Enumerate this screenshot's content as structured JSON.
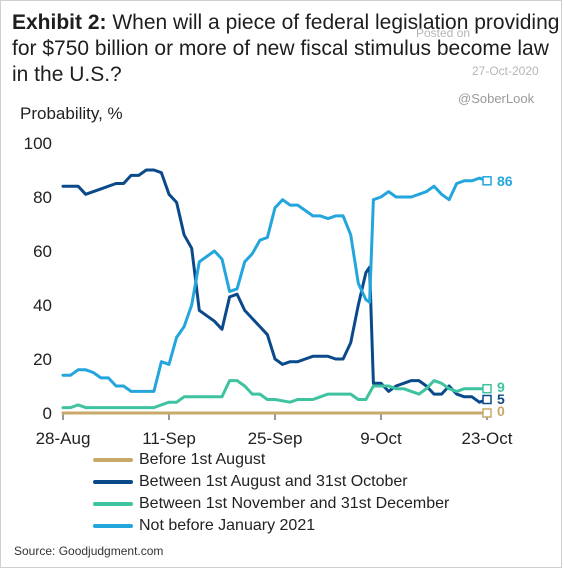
{
  "title": {
    "lead": "Exhibit 2:",
    "text": "When will a piece of federal legislation providing for $750 billion or more of new fiscal stimulus become law in the U.S.?"
  },
  "watermark": {
    "posted": "Posted on",
    "date": "27-Oct-2020",
    "handle": "@SoberLook"
  },
  "source": "Source: Goodjudgment.com",
  "colors": {
    "before_aug": "#c8a96a",
    "aug_oct": "#0b4a8a",
    "nov_dec": "#3ec2a0",
    "not_before_2021": "#24a6dc"
  },
  "chart_data": {
    "type": "line",
    "ylabel": "Probability, %",
    "ylim": [
      0,
      100
    ],
    "yticks": [
      0,
      20,
      40,
      60,
      80,
      100
    ],
    "xlim": [
      "2020-08-28",
      "2020-10-23"
    ],
    "x_ticks": [
      {
        "date": "2020-08-28",
        "label": "28-Aug"
      },
      {
        "date": "2020-09-11",
        "label": "11-Sep"
      },
      {
        "date": "2020-09-25",
        "label": "25-Sep"
      },
      {
        "date": "2020-10-09",
        "label": "9-Oct"
      },
      {
        "date": "2020-10-23",
        "label": "23-Oct"
      }
    ],
    "series": [
      {
        "key": "before_aug",
        "name": "Before 1st August",
        "end_label": "0",
        "points": [
          [
            "2020-08-28",
            0
          ],
          [
            "2020-10-23",
            0
          ]
        ]
      },
      {
        "key": "aug_oct",
        "name": "Between 1st August and 31st October",
        "end_label": "5",
        "points": [
          [
            "2020-08-28",
            84
          ],
          [
            "2020-08-30",
            84
          ],
          [
            "2020-08-31",
            81
          ],
          [
            "2020-09-02",
            83
          ],
          [
            "2020-09-04",
            85
          ],
          [
            "2020-09-05",
            85
          ],
          [
            "2020-09-06",
            88
          ],
          [
            "2020-09-07",
            88
          ],
          [
            "2020-09-08",
            90
          ],
          [
            "2020-09-09",
            90
          ],
          [
            "2020-09-10",
            89
          ],
          [
            "2020-09-11",
            81
          ],
          [
            "2020-09-12",
            78
          ],
          [
            "2020-09-13",
            66
          ],
          [
            "2020-09-14",
            61
          ],
          [
            "2020-09-15",
            38
          ],
          [
            "2020-09-16",
            36
          ],
          [
            "2020-09-17",
            34
          ],
          [
            "2020-09-18",
            31
          ],
          [
            "2020-09-19",
            43
          ],
          [
            "2020-09-20",
            44
          ],
          [
            "2020-09-21",
            38
          ],
          [
            "2020-09-22",
            35
          ],
          [
            "2020-09-23",
            32
          ],
          [
            "2020-09-24",
            29
          ],
          [
            "2020-09-25",
            20
          ],
          [
            "2020-09-26",
            18
          ],
          [
            "2020-09-27",
            19
          ],
          [
            "2020-09-28",
            19
          ],
          [
            "2020-09-29",
            20
          ],
          [
            "2020-09-30",
            21
          ],
          [
            "2020-10-02",
            21
          ],
          [
            "2020-10-03",
            20
          ],
          [
            "2020-10-04",
            20
          ],
          [
            "2020-10-05",
            26
          ],
          [
            "2020-10-06",
            40
          ],
          [
            "2020-10-07",
            52
          ],
          [
            "2020-10-07T12",
            54
          ],
          [
            "2020-10-08",
            11
          ],
          [
            "2020-10-09",
            11
          ],
          [
            "2020-10-10",
            8
          ],
          [
            "2020-10-11",
            10
          ],
          [
            "2020-10-12",
            11
          ],
          [
            "2020-10-13",
            12
          ],
          [
            "2020-10-14",
            12
          ],
          [
            "2020-10-15",
            10
          ],
          [
            "2020-10-16",
            7
          ],
          [
            "2020-10-17",
            7
          ],
          [
            "2020-10-18",
            10
          ],
          [
            "2020-10-19",
            7
          ],
          [
            "2020-10-20",
            6
          ],
          [
            "2020-10-21",
            6
          ],
          [
            "2020-10-22",
            4
          ],
          [
            "2020-10-23",
            5
          ]
        ]
      },
      {
        "key": "nov_dec",
        "name": "Between 1st November and 31st December",
        "end_label": "9",
        "points": [
          [
            "2020-08-28",
            2
          ],
          [
            "2020-08-29",
            2
          ],
          [
            "2020-08-30",
            3
          ],
          [
            "2020-08-31",
            2
          ],
          [
            "2020-09-07",
            2
          ],
          [
            "2020-09-08",
            2
          ],
          [
            "2020-09-09",
            2
          ],
          [
            "2020-09-10",
            3
          ],
          [
            "2020-09-11",
            4
          ],
          [
            "2020-09-12",
            4
          ],
          [
            "2020-09-13",
            6
          ],
          [
            "2020-09-18",
            6
          ],
          [
            "2020-09-19",
            12
          ],
          [
            "2020-09-20",
            12
          ],
          [
            "2020-09-21",
            10
          ],
          [
            "2020-09-22",
            7
          ],
          [
            "2020-09-23",
            7
          ],
          [
            "2020-09-24",
            5
          ],
          [
            "2020-09-25",
            5
          ],
          [
            "2020-09-27",
            4
          ],
          [
            "2020-09-28",
            5
          ],
          [
            "2020-09-30",
            5
          ],
          [
            "2020-10-01",
            6
          ],
          [
            "2020-10-02",
            7
          ],
          [
            "2020-10-05",
            7
          ],
          [
            "2020-10-06",
            5
          ],
          [
            "2020-10-07",
            5
          ],
          [
            "2020-10-08",
            10
          ],
          [
            "2020-10-09",
            10
          ],
          [
            "2020-10-10",
            10
          ],
          [
            "2020-10-11",
            9
          ],
          [
            "2020-10-12",
            9
          ],
          [
            "2020-10-13",
            8
          ],
          [
            "2020-10-14",
            7
          ],
          [
            "2020-10-15",
            9
          ],
          [
            "2020-10-16",
            12
          ],
          [
            "2020-10-17",
            11
          ],
          [
            "2020-10-18",
            9
          ],
          [
            "2020-10-19",
            8
          ],
          [
            "2020-10-20",
            9
          ],
          [
            "2020-10-21",
            9
          ],
          [
            "2020-10-23",
            9
          ]
        ]
      },
      {
        "key": "not_before_2021",
        "name": "Not before January 2021",
        "end_label": "86",
        "points": [
          [
            "2020-08-28",
            14
          ],
          [
            "2020-08-29",
            14
          ],
          [
            "2020-08-30",
            16
          ],
          [
            "2020-08-31",
            16
          ],
          [
            "2020-09-01",
            15
          ],
          [
            "2020-09-02",
            13
          ],
          [
            "2020-09-03",
            13
          ],
          [
            "2020-09-04",
            10
          ],
          [
            "2020-09-05",
            10
          ],
          [
            "2020-09-06",
            8
          ],
          [
            "2020-09-07",
            8
          ],
          [
            "2020-09-08",
            8
          ],
          [
            "2020-09-09",
            8
          ],
          [
            "2020-09-10",
            19
          ],
          [
            "2020-09-11",
            18
          ],
          [
            "2020-09-12",
            28
          ],
          [
            "2020-09-13",
            32
          ],
          [
            "2020-09-14",
            40
          ],
          [
            "2020-09-15",
            56
          ],
          [
            "2020-09-16",
            58
          ],
          [
            "2020-09-17",
            60
          ],
          [
            "2020-09-18",
            57
          ],
          [
            "2020-09-19",
            45
          ],
          [
            "2020-09-20",
            46
          ],
          [
            "2020-09-21",
            56
          ],
          [
            "2020-09-22",
            59
          ],
          [
            "2020-09-23",
            64
          ],
          [
            "2020-09-24",
            65
          ],
          [
            "2020-09-25",
            76
          ],
          [
            "2020-09-26",
            79
          ],
          [
            "2020-09-27",
            77
          ],
          [
            "2020-09-28",
            77
          ],
          [
            "2020-09-29",
            75
          ],
          [
            "2020-09-30",
            73
          ],
          [
            "2020-10-01",
            73
          ],
          [
            "2020-10-02",
            72
          ],
          [
            "2020-10-03",
            73
          ],
          [
            "2020-10-04",
            73
          ],
          [
            "2020-10-05",
            66
          ],
          [
            "2020-10-06",
            48
          ],
          [
            "2020-10-07",
            42
          ],
          [
            "2020-10-07T12",
            41
          ],
          [
            "2020-10-08",
            79
          ],
          [
            "2020-10-09",
            80
          ],
          [
            "2020-10-10",
            82
          ],
          [
            "2020-10-11",
            80
          ],
          [
            "2020-10-13",
            80
          ],
          [
            "2020-10-14",
            81
          ],
          [
            "2020-10-15",
            82
          ],
          [
            "2020-10-16",
            84
          ],
          [
            "2020-10-17",
            81
          ],
          [
            "2020-10-18",
            79
          ],
          [
            "2020-10-19",
            85
          ],
          [
            "2020-10-20",
            86
          ],
          [
            "2020-10-21",
            86
          ],
          [
            "2020-10-22",
            87
          ],
          [
            "2020-10-23",
            86
          ]
        ]
      }
    ],
    "legend_position": "bottom",
    "grid": false
  }
}
